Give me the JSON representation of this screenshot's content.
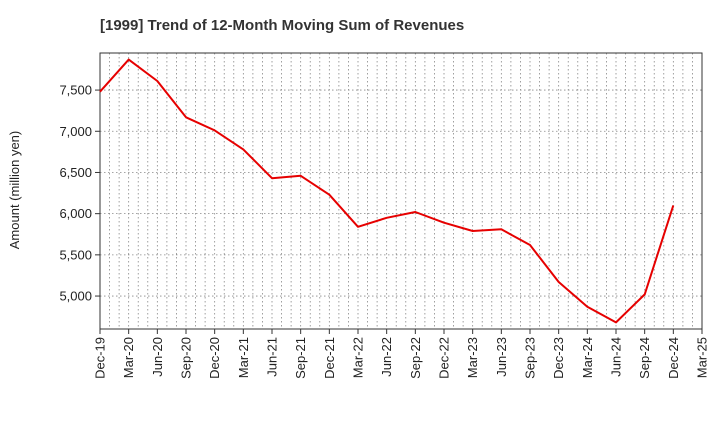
{
  "chart_data": {
    "type": "line",
    "title": "[1999]  Trend of 12-Month Moving Sum of Revenues",
    "xlabel": "",
    "ylabel": "Amount (million yen)",
    "ylim": [
      4600,
      7950
    ],
    "y_ticks": [
      5000,
      5500,
      6000,
      6500,
      7000,
      7500
    ],
    "y_tick_labels": [
      "5,000",
      "5,500",
      "6,000",
      "6,500",
      "7,000",
      "7,500"
    ],
    "x_tick_labels": [
      "Dec-19",
      "Mar-20",
      "Jun-20",
      "Sep-20",
      "Dec-20",
      "Mar-21",
      "Jun-21",
      "Sep-21",
      "Dec-21",
      "Mar-22",
      "Jun-22",
      "Sep-22",
      "Dec-22",
      "Mar-23",
      "Jun-23",
      "Sep-23",
      "Dec-23",
      "Mar-24",
      "Jun-24",
      "Sep-24",
      "Dec-24",
      "Mar-25"
    ],
    "grid": true,
    "series": [
      {
        "color": "#e60000",
        "x": [
          "Dec-19",
          "Mar-20",
          "Jun-20",
          "Sep-20",
          "Dec-20",
          "Mar-21",
          "Jun-21",
          "Sep-21",
          "Dec-21",
          "Mar-22",
          "Jun-22",
          "Sep-22",
          "Dec-22",
          "Mar-23",
          "Jun-23",
          "Sep-23",
          "Dec-23",
          "Mar-24",
          "Jun-24",
          "Sep-24",
          "Dec-24"
        ],
        "values": [
          7480,
          7870,
          7610,
          7170,
          7010,
          6780,
          6430,
          6460,
          6230,
          5840,
          5950,
          6020,
          5890,
          5790,
          5810,
          5620,
          5170,
          4870,
          4680,
          5020,
          6100
        ]
      }
    ]
  }
}
